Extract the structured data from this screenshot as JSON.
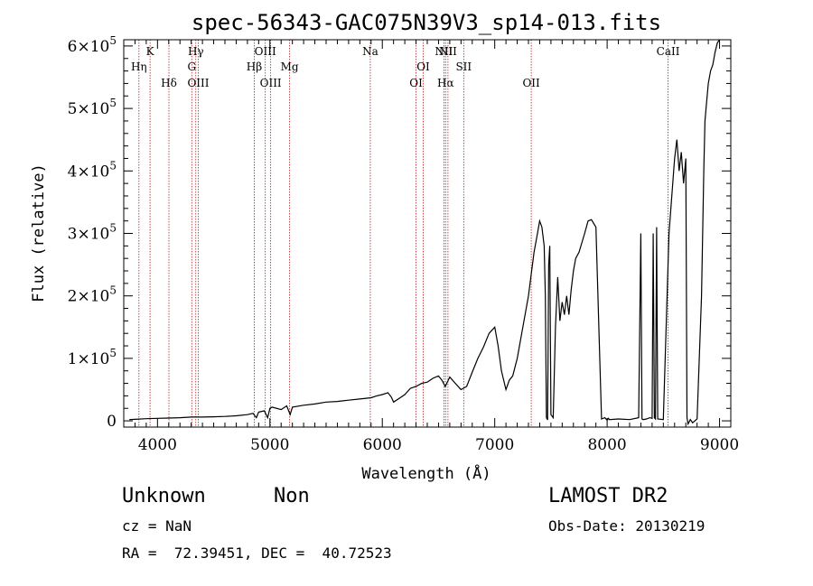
{
  "chart_data": {
    "type": "line",
    "title": "spec-56343-GAC075N39V3_sp14-013.fits",
    "xlabel": "Wavelength (Å)",
    "ylabel": "Flux (relative)",
    "xlim": [
      3700,
      9100
    ],
    "ylim": [
      -10000,
      610000
    ],
    "x_ticks": [
      4000,
      5000,
      6000,
      7000,
      8000,
      9000
    ],
    "x_tick_labels": [
      "4000",
      "5000",
      "6000",
      "7000",
      "8000",
      "9000"
    ],
    "y_ticks": [
      0,
      100000,
      200000,
      300000,
      400000,
      500000,
      600000
    ],
    "y_tick_labels": [
      {
        "mantissa": "0",
        "exp": ""
      },
      {
        "mantissa": "1×10",
        "exp": "5"
      },
      {
        "mantissa": "2×10",
        "exp": "5"
      },
      {
        "mantissa": "3×10",
        "exp": "5"
      },
      {
        "mantissa": "4×10",
        "exp": "5"
      },
      {
        "mantissa": "5×10",
        "exp": "5"
      },
      {
        "mantissa": "6×10",
        "exp": "5"
      }
    ],
    "grid": false,
    "series": [
      {
        "color": "#000000",
        "x": [
          3750,
          3800,
          3900,
          4000,
          4100,
          4200,
          4300,
          4400,
          4500,
          4600,
          4700,
          4800,
          4850,
          4880,
          4900,
          4950,
          4980,
          5000,
          5020,
          5100,
          5150,
          5180,
          5200,
          5300,
          5400,
          5500,
          5600,
          5700,
          5800,
          5900,
          5950,
          6000,
          6050,
          6080,
          6100,
          6150,
          6200,
          6250,
          6300,
          6350,
          6400,
          6450,
          6500,
          6530,
          6560,
          6600,
          6650,
          6700,
          6750,
          6800,
          6850,
          6900,
          6950,
          7000,
          7030,
          7060,
          7100,
          7130,
          7160,
          7200,
          7250,
          7300,
          7350,
          7380,
          7400,
          7420,
          7440,
          7450,
          7460,
          7470,
          7480,
          7490,
          7500,
          7520,
          7540,
          7560,
          7580,
          7600,
          7620,
          7640,
          7660,
          7680,
          7700,
          7720,
          7750,
          7800,
          7830,
          7860,
          7900,
          7950,
          7980,
          8000,
          8010,
          8020,
          8100,
          8200,
          8280,
          8300,
          8310,
          8320,
          8350,
          8380,
          8400,
          8410,
          8420,
          8430,
          8440,
          8450,
          8500,
          8550,
          8600,
          8620,
          8640,
          8660,
          8680,
          8700,
          8710,
          8720,
          8740,
          8760,
          8800,
          8840,
          8860,
          8870,
          8880,
          8900,
          8920,
          8940,
          8960,
          8980,
          9000
        ],
        "y": [
          2000,
          2500,
          3500,
          4000,
          4500,
          5000,
          6000,
          6000,
          6500,
          7000,
          8000,
          10000,
          12000,
          5000,
          14000,
          16000,
          5000,
          20000,
          22000,
          18000,
          24000,
          10000,
          22000,
          25000,
          27000,
          30000,
          31000,
          33000,
          35000,
          37000,
          40000,
          42000,
          45000,
          38000,
          30000,
          36000,
          42000,
          52000,
          55000,
          60000,
          62000,
          68000,
          72000,
          65000,
          55000,
          70000,
          60000,
          50000,
          55000,
          78000,
          100000,
          118000,
          140000,
          150000,
          120000,
          80000,
          50000,
          65000,
          72000,
          100000,
          150000,
          200000,
          270000,
          300000,
          320000,
          310000,
          280000,
          200000,
          5000,
          1500,
          250000,
          280000,
          10000,
          5000,
          150000,
          230000,
          160000,
          190000,
          170000,
          200000,
          170000,
          210000,
          240000,
          260000,
          270000,
          300000,
          320000,
          322000,
          310000,
          3000,
          5000,
          1000,
          4000,
          2000,
          3000,
          2000,
          5000,
          300000,
          3000,
          2000,
          3000,
          5000,
          4000,
          300000,
          5000,
          3000,
          310000,
          3000,
          2000,
          300000,
          420000,
          450000,
          400000,
          430000,
          380000,
          420000,
          5000,
          -5000,
          2000,
          -3000,
          3000,
          200000,
          400000,
          480000,
          500000,
          540000,
          560000,
          570000,
          590000,
          605000,
          610000
        ]
      }
    ],
    "lines": [
      {
        "label": "Hη",
        "x": 3835,
        "row": 2
      },
      {
        "label": "K",
        "x": 3934,
        "row": 1
      },
      {
        "label": "Hδ",
        "x": 4102,
        "row": 3
      },
      {
        "label": "Hγ",
        "x": 4341,
        "row": 1
      },
      {
        "label": "G",
        "x": 4305,
        "row": 2
      },
      {
        "label": "OIII",
        "x": 4363,
        "row": 3
      },
      {
        "label": "Hβ",
        "x": 4861,
        "row": 2
      },
      {
        "label": "OIII",
        "x": 4959,
        "row": 1
      },
      {
        "label": "OIII",
        "x": 5007,
        "row": 3
      },
      {
        "label": "Mg",
        "x": 5175,
        "row": 2
      },
      {
        "label": "Na",
        "x": 5893,
        "row": 1
      },
      {
        "label": "OI",
        "x": 6300,
        "row": 3
      },
      {
        "label": "OI",
        "x": 6364,
        "row": 2
      },
      {
        "label": "NII",
        "x": 6548,
        "row": 1
      },
      {
        "label": "Hα",
        "x": 6563,
        "row": 3
      },
      {
        "label": "NII",
        "x": 6584,
        "row": 1
      },
      {
        "label": "SII",
        "x": 6724,
        "row": 2
      },
      {
        "label": "OII",
        "x": 7325,
        "row": 3
      },
      {
        "label": "CaII",
        "x": 8542,
        "row": 1
      }
    ],
    "line_color": "#b22222"
  },
  "info": {
    "object_class": "Unknown",
    "object_subclass": "Non",
    "cz": "cz = NaN",
    "coords": "RA =  72.39451, DEC =  40.72523",
    "survey": "LAMOST DR2",
    "obs_date": "Obs-Date: 20130219"
  }
}
